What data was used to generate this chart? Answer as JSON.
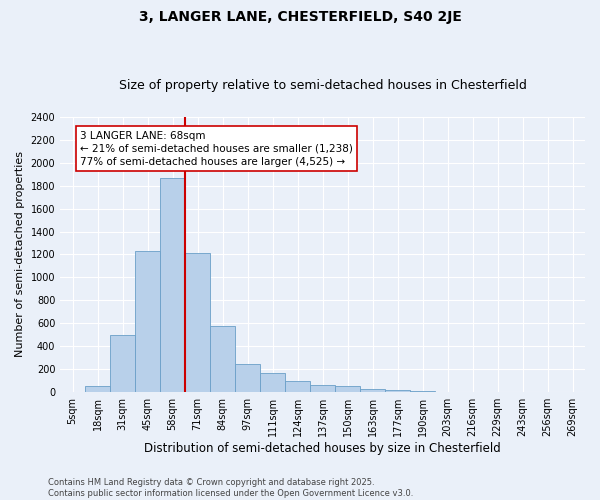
{
  "title": "3, LANGER LANE, CHESTERFIELD, S40 2JE",
  "subtitle": "Size of property relative to semi-detached houses in Chesterfield",
  "xlabel": "Distribution of semi-detached houses by size in Chesterfield",
  "ylabel": "Number of semi-detached properties",
  "footnote": "Contains HM Land Registry data © Crown copyright and database right 2025.\nContains public sector information licensed under the Open Government Licence v3.0.",
  "bar_labels": [
    "5sqm",
    "18sqm",
    "31sqm",
    "45sqm",
    "58sqm",
    "71sqm",
    "84sqm",
    "97sqm",
    "111sqm",
    "124sqm",
    "137sqm",
    "150sqm",
    "163sqm",
    "177sqm",
    "190sqm",
    "203sqm",
    "216sqm",
    "229sqm",
    "243sqm",
    "256sqm",
    "269sqm"
  ],
  "bar_values": [
    5,
    50,
    500,
    1230,
    1870,
    1210,
    580,
    250,
    165,
    100,
    65,
    50,
    30,
    20,
    10,
    5,
    3,
    2,
    1,
    1,
    0
  ],
  "bar_color": "#b8d0ea",
  "bar_edge_color": "#6a9fc8",
  "bg_color": "#eaf0f9",
  "grid_color": "#ffffff",
  "property_label": "3 LANGER LANE: 68sqm",
  "pct_smaller": 21,
  "count_smaller": 1238,
  "pct_larger": 77,
  "count_larger": 4525,
  "vline_color": "#cc0000",
  "annotation_box_color": "#cc0000",
  "ylim": [
    0,
    2400
  ],
  "yticks": [
    0,
    200,
    400,
    600,
    800,
    1000,
    1200,
    1400,
    1600,
    1800,
    2000,
    2200,
    2400
  ],
  "title_fontsize": 10,
  "subtitle_fontsize": 9,
  "xlabel_fontsize": 8.5,
  "ylabel_fontsize": 8,
  "tick_fontsize": 7,
  "footnote_fontsize": 6,
  "annotation_fontsize": 7.5
}
